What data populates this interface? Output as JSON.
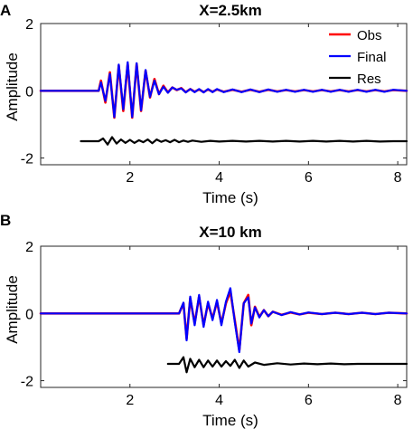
{
  "chart_data": [
    {
      "type": "line",
      "panel_label": "A",
      "title": "X=2.5km",
      "xlabel": "Time (s)",
      "ylabel": "Amplitude",
      "xlim": [
        0,
        8.2
      ],
      "ylim": [
        -2.2,
        2
      ],
      "xticks": [
        2,
        4,
        6,
        8
      ],
      "yticks": [
        -2,
        0,
        2
      ],
      "grid": false,
      "legend": {
        "placement": "top-right",
        "entries": [
          "Obs",
          "Final",
          "Res"
        ]
      },
      "series": [
        {
          "name": "Obs",
          "color": "#ff0000",
          "width": 2.6,
          "x": [
            0.0,
            1.3,
            1.35,
            1.45,
            1.55,
            1.65,
            1.75,
            1.85,
            1.95,
            2.05,
            2.15,
            2.25,
            2.35,
            2.45,
            2.55,
            2.65,
            2.75,
            2.85,
            2.95,
            3.05,
            3.15,
            3.25,
            3.35,
            3.45,
            3.55,
            3.65,
            3.75,
            3.85,
            3.95,
            4.1,
            4.3,
            4.5,
            4.7,
            4.9,
            5.1,
            5.3,
            5.5,
            5.7,
            5.9,
            6.1,
            6.3,
            6.5,
            6.7,
            6.9,
            7.1,
            7.3,
            7.5,
            7.7,
            7.9,
            8.2
          ],
          "y": [
            0.0,
            0.0,
            0.3,
            -0.35,
            0.55,
            -0.8,
            0.75,
            -0.6,
            0.8,
            -0.8,
            0.8,
            -0.6,
            0.6,
            -0.2,
            0.35,
            -0.1,
            0.15,
            -0.05,
            0.1,
            0.02,
            0.08,
            -0.04,
            0.05,
            -0.03,
            0.04,
            -0.04,
            0.04,
            -0.03,
            0.04,
            -0.03,
            0.03,
            -0.03,
            0.03,
            -0.03,
            0.03,
            -0.02,
            0.02,
            -0.02,
            0.02,
            -0.02,
            0.02,
            -0.02,
            0.02,
            -0.02,
            0.02,
            -0.02,
            0.02,
            -0.02,
            0.02,
            0.0
          ]
        },
        {
          "name": "Final",
          "color": "#0000ff",
          "width": 2.2,
          "x": [
            0.0,
            1.3,
            1.35,
            1.45,
            1.55,
            1.65,
            1.75,
            1.85,
            1.95,
            2.05,
            2.15,
            2.25,
            2.35,
            2.45,
            2.55,
            2.65,
            2.75,
            2.85,
            2.95,
            3.05,
            3.15,
            3.25,
            3.35,
            3.45,
            3.55,
            3.65,
            3.75,
            3.85,
            3.95,
            4.1,
            4.3,
            4.5,
            4.7,
            4.9,
            5.1,
            5.3,
            5.5,
            5.7,
            5.9,
            6.1,
            6.3,
            6.5,
            6.7,
            6.9,
            7.1,
            7.3,
            7.5,
            7.7,
            7.9,
            8.2
          ],
          "y": [
            0.0,
            0.0,
            0.25,
            -0.3,
            0.5,
            -0.78,
            0.78,
            -0.55,
            0.85,
            -0.78,
            0.82,
            -0.58,
            0.62,
            -0.18,
            0.3,
            -0.1,
            0.12,
            -0.06,
            0.1,
            0.03,
            0.07,
            -0.05,
            0.05,
            -0.04,
            0.05,
            -0.05,
            0.05,
            -0.04,
            0.05,
            -0.04,
            0.04,
            -0.04,
            0.04,
            -0.04,
            0.04,
            -0.03,
            0.03,
            -0.03,
            0.03,
            -0.03,
            0.03,
            -0.03,
            0.03,
            -0.03,
            0.03,
            -0.03,
            0.03,
            -0.03,
            0.03,
            0.0
          ]
        },
        {
          "name": "Res",
          "color": "#000000",
          "width": 2.2,
          "x": [
            0.9,
            1.3,
            1.4,
            1.5,
            1.6,
            1.7,
            1.8,
            1.9,
            2.0,
            2.1,
            2.2,
            2.3,
            2.4,
            2.5,
            2.6,
            2.7,
            2.8,
            2.9,
            3.0,
            3.1,
            3.2,
            3.3,
            3.4,
            3.6,
            3.8,
            4.0,
            4.3,
            4.6,
            4.9,
            5.2,
            5.5,
            5.8,
            6.1,
            6.4,
            6.7,
            7.0,
            7.3,
            7.6,
            7.9,
            8.2
          ],
          "y": [
            -1.5,
            -1.5,
            -1.42,
            -1.6,
            -1.38,
            -1.57,
            -1.45,
            -1.55,
            -1.46,
            -1.55,
            -1.47,
            -1.53,
            -1.45,
            -1.56,
            -1.45,
            -1.52,
            -1.47,
            -1.53,
            -1.46,
            -1.53,
            -1.48,
            -1.52,
            -1.48,
            -1.52,
            -1.49,
            -1.51,
            -1.49,
            -1.51,
            -1.49,
            -1.51,
            -1.49,
            -1.51,
            -1.49,
            -1.51,
            -1.49,
            -1.51,
            -1.49,
            -1.51,
            -1.5,
            -1.5
          ]
        }
      ]
    },
    {
      "type": "line",
      "panel_label": "B",
      "title": "X=10 km",
      "xlabel": "Time (s)",
      "ylabel": "Amplitude",
      "xlim": [
        0,
        8.2
      ],
      "ylim": [
        -2.2,
        2
      ],
      "xticks": [
        2,
        4,
        6,
        8
      ],
      "yticks": [
        -2,
        0,
        2
      ],
      "grid": false,
      "series": [
        {
          "name": "Obs",
          "color": "#ff0000",
          "width": 2.6,
          "x": [
            0.0,
            3.1,
            3.2,
            3.27,
            3.35,
            3.45,
            3.55,
            3.65,
            3.75,
            3.85,
            3.95,
            4.05,
            4.15,
            4.25,
            4.35,
            4.45,
            4.55,
            4.65,
            4.72,
            4.8,
            4.9,
            5.0,
            5.1,
            5.2,
            5.4,
            5.6,
            5.8,
            6.0,
            6.3,
            6.6,
            6.9,
            7.2,
            7.5,
            7.8,
            8.2
          ],
          "y": [
            0.0,
            0.0,
            0.3,
            -0.75,
            0.45,
            -0.3,
            0.5,
            -0.35,
            0.3,
            -0.15,
            0.35,
            -0.3,
            0.3,
            0.65,
            -0.2,
            -1.1,
            0.3,
            0.55,
            -0.35,
            0.2,
            -0.1,
            0.1,
            -0.08,
            0.05,
            -0.04,
            0.03,
            -0.03,
            0.02,
            -0.02,
            0.02,
            -0.02,
            0.02,
            -0.02,
            0.02,
            0.0
          ]
        },
        {
          "name": "Final",
          "color": "#0000ff",
          "width": 2.2,
          "x": [
            0.0,
            3.1,
            3.2,
            3.27,
            3.35,
            3.45,
            3.55,
            3.65,
            3.75,
            3.85,
            3.95,
            4.05,
            4.15,
            4.25,
            4.35,
            4.45,
            4.55,
            4.65,
            4.72,
            4.8,
            4.9,
            5.0,
            5.1,
            5.2,
            5.4,
            5.6,
            5.8,
            6.0,
            6.3,
            6.6,
            6.9,
            7.2,
            7.5,
            7.8,
            8.2
          ],
          "y": [
            0.0,
            0.0,
            0.32,
            -0.8,
            0.5,
            -0.35,
            0.55,
            -0.4,
            0.35,
            -0.2,
            0.4,
            -0.35,
            0.35,
            0.75,
            -0.25,
            -1.15,
            0.3,
            0.48,
            -0.3,
            0.18,
            -0.12,
            0.1,
            -0.08,
            0.05,
            -0.05,
            0.04,
            -0.03,
            0.03,
            -0.02,
            0.02,
            -0.02,
            0.02,
            -0.02,
            0.02,
            0.0
          ]
        },
        {
          "name": "Res",
          "color": "#000000",
          "width": 2.2,
          "x": [
            2.85,
            3.1,
            3.2,
            3.27,
            3.35,
            3.45,
            3.55,
            3.65,
            3.75,
            3.85,
            3.95,
            4.05,
            4.15,
            4.25,
            4.35,
            4.45,
            4.55,
            4.65,
            4.8,
            5.0,
            5.3,
            5.6,
            5.9,
            6.2,
            6.5,
            6.8,
            7.1,
            7.4,
            7.7,
            8.2
          ],
          "y": [
            -1.5,
            -1.5,
            -1.3,
            -1.75,
            -1.35,
            -1.6,
            -1.38,
            -1.6,
            -1.4,
            -1.58,
            -1.4,
            -1.58,
            -1.42,
            -1.56,
            -1.38,
            -1.62,
            -1.4,
            -1.58,
            -1.46,
            -1.53,
            -1.48,
            -1.52,
            -1.49,
            -1.51,
            -1.49,
            -1.51,
            -1.5,
            -1.5,
            -1.5,
            -1.5
          ]
        }
      ]
    }
  ]
}
